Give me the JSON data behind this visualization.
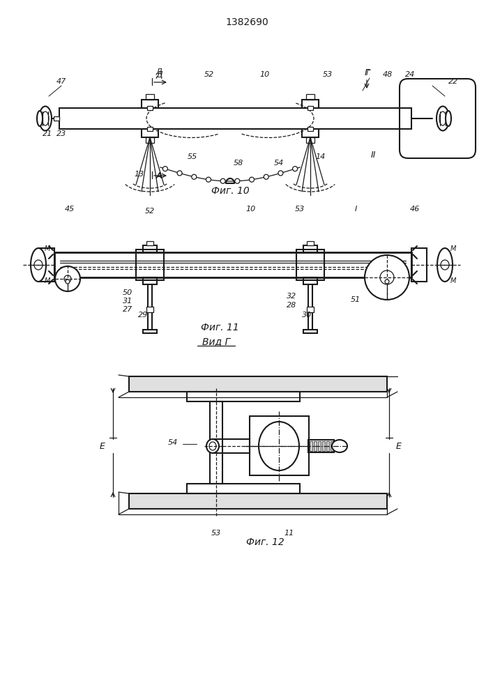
{
  "title": "1382690",
  "bg_color": "#ffffff",
  "line_color": "#1a1a1a",
  "fig10_caption": "Фиг. 10",
  "fig11_caption": "Фиг. 11",
  "fig12_caption": "Фиг. 12",
  "vid_caption": "Вид Г"
}
